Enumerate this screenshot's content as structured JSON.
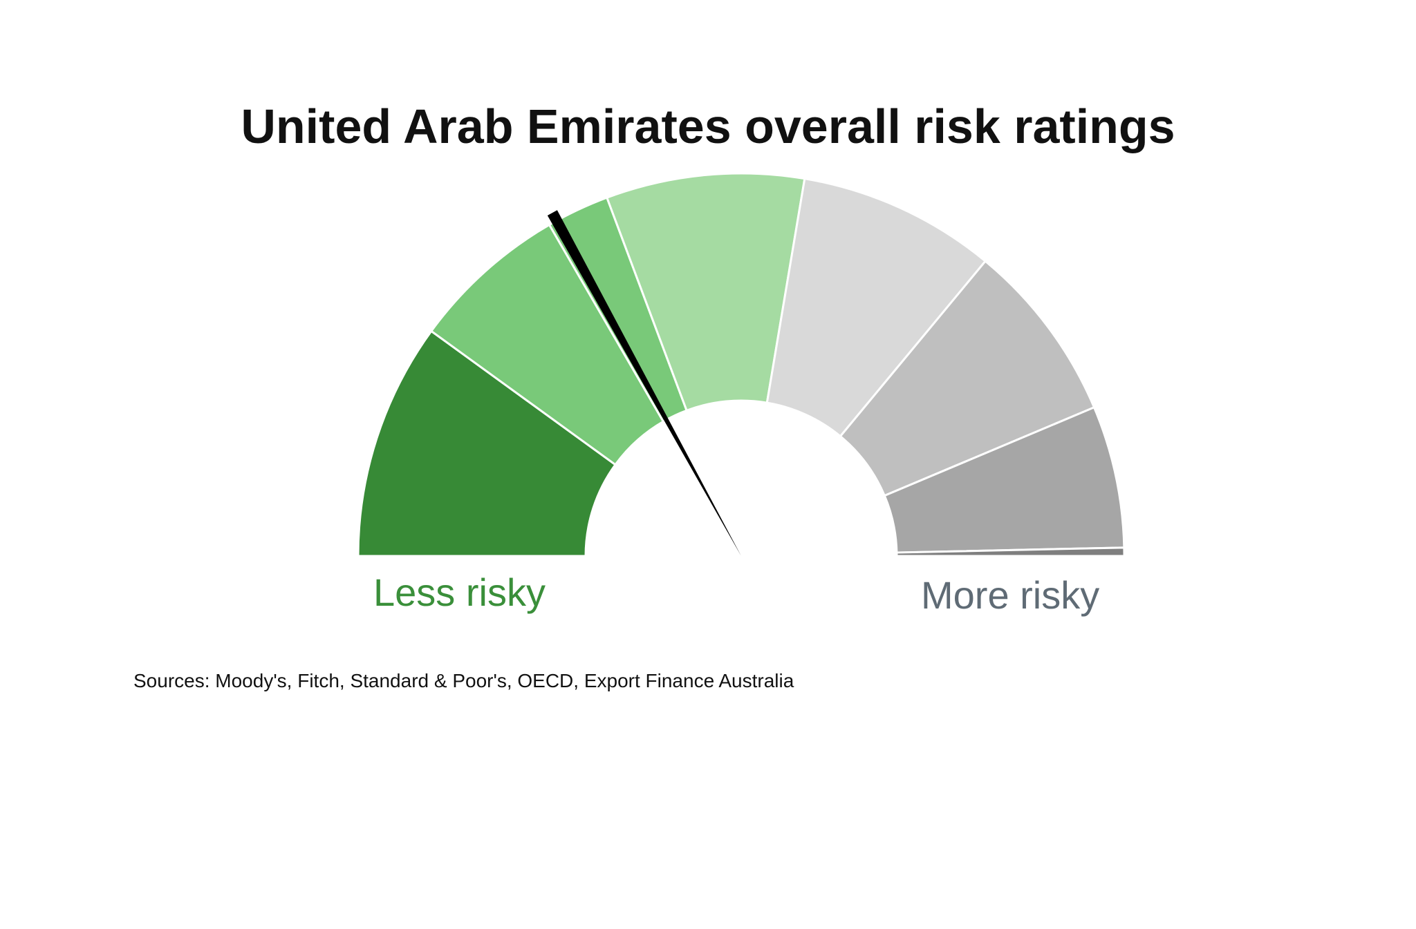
{
  "chart_data": {
    "type": "gauge",
    "title": "United Arab Emirates overall risk ratings",
    "scale_labels": {
      "less": "Less risky",
      "more": "More risky"
    },
    "segments": [
      {
        "span": 0.2,
        "color": "#378a36"
      },
      {
        "span": 0.133,
        "color": "#79c979"
      },
      {
        "span": 0.053,
        "color": "#79c979"
      },
      {
        "span": 0.167,
        "color": "#a5dba2"
      },
      {
        "span": 0.167,
        "color": "#d9d9d9"
      },
      {
        "span": 0.153,
        "color": "#bfbfbf"
      },
      {
        "span": 0.12,
        "color": "#a6a6a6"
      },
      {
        "span": 0.12,
        "color": "#7f7f7f"
      }
    ],
    "needle_value": 0.34,
    "needle_color": "#000000",
    "range": [
      0,
      1
    ]
  },
  "colors": {
    "less_label": "#3a8f3a",
    "more_label": "#5f6b75"
  },
  "source": "Sources: Moody's, Fitch, Standard & Poor's, OECD, Export Finance Australia"
}
